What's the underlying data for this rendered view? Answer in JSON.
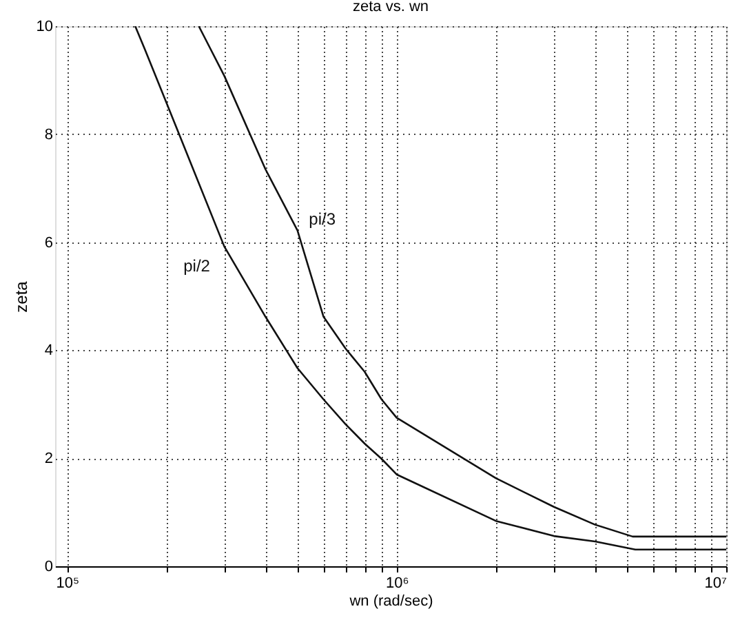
{
  "chart_data": {
    "type": "line",
    "title": "zeta vs. wn",
    "xlabel": "wn (rad/sec)",
    "ylabel": "zeta",
    "log": "x",
    "xlim": [
      92000,
      10000000
    ],
    "xticks": [
      {
        "value": 100000,
        "label": "10⁵"
      },
      {
        "value": 200000,
        "label": null
      },
      {
        "value": 300000,
        "label": null
      },
      {
        "value": 400000,
        "label": null
      },
      {
        "value": 500000,
        "label": null
      },
      {
        "value": 600000,
        "label": null
      },
      {
        "value": 700000,
        "label": null
      },
      {
        "value": 800000,
        "label": null
      },
      {
        "value": 900000,
        "label": null
      },
      {
        "value": 1000000,
        "label": "10⁶"
      },
      {
        "value": 2000000,
        "label": null
      },
      {
        "value": 3000000,
        "label": null
      },
      {
        "value": 4000000,
        "label": null
      },
      {
        "value": 5000000,
        "label": null
      },
      {
        "value": 6000000,
        "label": null
      },
      {
        "value": 7000000,
        "label": null
      },
      {
        "value": 8000000,
        "label": null
      },
      {
        "value": 9000000,
        "label": null
      },
      {
        "value": 10000000,
        "label": "10⁷"
      }
    ],
    "ylim": [
      0,
      10
    ],
    "yticks": [
      0,
      2,
      4,
      6,
      8,
      10
    ],
    "grid": true,
    "line_style": "solid",
    "marker": "none",
    "series": [
      {
        "name": "pi/2",
        "color": "#111111",
        "x": [
          161000,
          172000,
          200000,
          300000,
          400000,
          500000,
          600000,
          700000,
          800000,
          900000,
          1000000,
          2000000,
          3000000,
          4000000,
          5300000,
          10000000
        ],
        "values": [
          10,
          9.58,
          8.59,
          5.92,
          4.62,
          3.67,
          3.09,
          2.63,
          2.27,
          1.99,
          1.7,
          0.84,
          0.56,
          0.46,
          0.31,
          0.31
        ]
      },
      {
        "name": "pi/3",
        "color": "#111111",
        "x": [
          251000,
          262000,
          300000,
          400000,
          500000,
          600000,
          700000,
          800000,
          900000,
          1000000,
          2000000,
          3000000,
          4000000,
          5200000,
          10000000
        ],
        "values": [
          10,
          9.78,
          9.08,
          7.35,
          6.22,
          4.62,
          4.03,
          3.6,
          3.09,
          2.75,
          1.63,
          1.1,
          0.77,
          0.55,
          0.55
        ]
      }
    ]
  }
}
